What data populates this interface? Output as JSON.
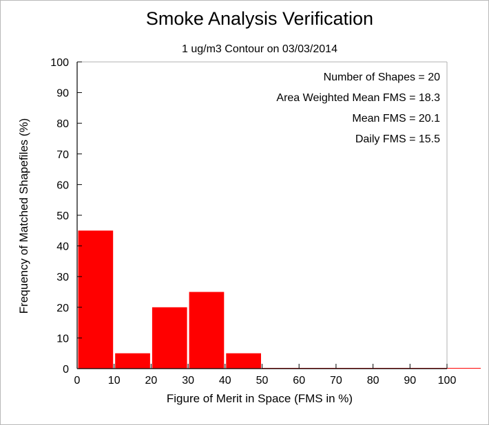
{
  "chart_data": {
    "type": "bar",
    "title": "Smoke Analysis Verification",
    "subtitle": "1 ug/m3 Contour on 03/03/2014",
    "xlabel": "Figure of Merit in Space (FMS in %)",
    "ylabel": "Frequency of Matched Shapefiles (%)",
    "xlim": [
      0,
      100
    ],
    "ylim": [
      0,
      100
    ],
    "xticks": [
      "0",
      "10",
      "20",
      "30",
      "40",
      "50",
      "60",
      "70",
      "80",
      "90",
      "100"
    ],
    "yticks": [
      "0",
      "10",
      "20",
      "30",
      "40",
      "50",
      "60",
      "70",
      "80",
      "90",
      "100"
    ],
    "bins": [
      {
        "from": 0,
        "to": 10,
        "value": 45
      },
      {
        "from": 10,
        "to": 20,
        "value": 5
      },
      {
        "from": 20,
        "to": 30,
        "value": 20
      },
      {
        "from": 30,
        "to": 40,
        "value": 25
      },
      {
        "from": 40,
        "to": 50,
        "value": 5
      },
      {
        "from": 50,
        "to": 60,
        "value": 0
      },
      {
        "from": 60,
        "to": 70,
        "value": 0
      },
      {
        "from": 70,
        "to": 80,
        "value": 0
      },
      {
        "from": 80,
        "to": 90,
        "value": 0
      },
      {
        "from": 90,
        "to": 100,
        "value": 0
      }
    ],
    "bar_color": "#ff0000",
    "grid": false,
    "annotations": [
      "Number of Shapes = 20",
      "Area Weighted Mean FMS = 18.3",
      "Mean FMS = 20.1",
      "Daily FMS = 15.5"
    ]
  }
}
